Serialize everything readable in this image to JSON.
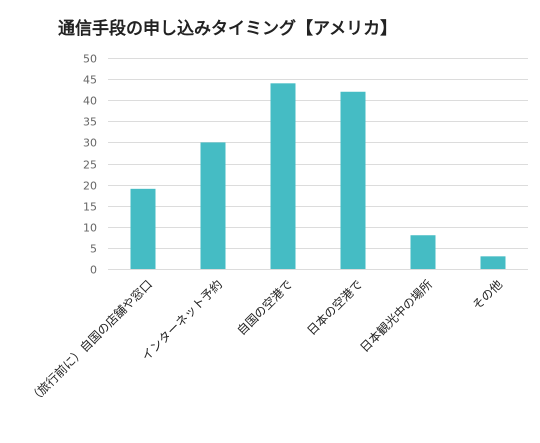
{
  "chart_data": {
    "type": "bar",
    "title": "通信手段の申し込みタイミング【アメリカ】",
    "categories": [
      "（旅行前に）自国の店舗や窓口",
      "インターネット予約",
      "自国の空港で",
      "日本の空港で",
      "日本観光中の場所",
      "その他"
    ],
    "values": [
      19,
      30,
      44,
      42,
      8,
      3
    ],
    "ylim": [
      0,
      50
    ],
    "yticks": [
      0,
      5,
      10,
      15,
      20,
      25,
      30,
      35,
      40,
      45,
      50
    ],
    "xlabel": "",
    "ylabel": "",
    "grid": true,
    "legend": "none",
    "bar_color": "#45bcc4"
  }
}
